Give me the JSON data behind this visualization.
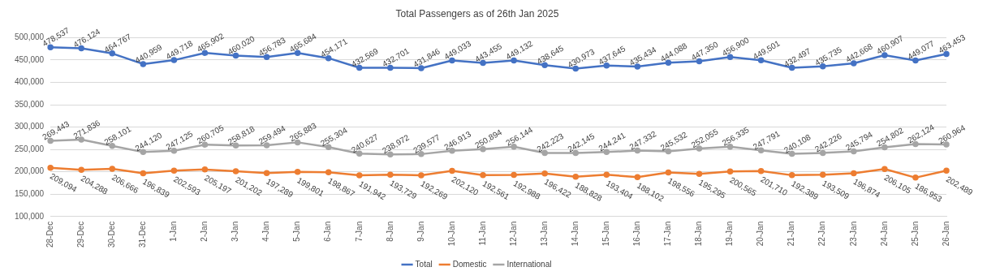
{
  "chart_data": {
    "type": "line",
    "title": "Total Passengers as of 26th Jan 2025",
    "categories": [
      "28-Dec",
      "29-Dec",
      "30-Dec",
      "31-Dec",
      "1-Jan",
      "2-Jan",
      "3-Jan",
      "4-Jan",
      "5-Jan",
      "6-Jan",
      "7-Jan",
      "8-Jan",
      "9-Jan",
      "10-Jan",
      "11-Jan",
      "12-Jan",
      "13-Jan",
      "14-Jan",
      "15-Jan",
      "16-Jan",
      "17-Jan",
      "18-Jan",
      "19-Jan",
      "20-Jan",
      "21-Jan",
      "22-Jan",
      "23-Jan",
      "24-Jan",
      "25-Jan",
      "26-Jan"
    ],
    "series": [
      {
        "name": "Total",
        "color": "#4472c4",
        "values": [
          478537,
          476124,
          464767,
          440959,
          449718,
          465902,
          460020,
          456783,
          465684,
          454171,
          432569,
          432701,
          431846,
          449033,
          443455,
          449132,
          438645,
          430973,
          437645,
          435434,
          444088,
          447350,
          456900,
          449501,
          432497,
          435735,
          442668,
          460907,
          449077,
          463453
        ],
        "value_labels": [
          "478,537",
          "476,124",
          "464,767",
          "440,959",
          "449,718",
          "465,902",
          "460,020",
          "456,783",
          "465,684",
          "454,171",
          "432,569",
          "432,701",
          "431,846",
          "449,033",
          "443,455",
          "449,132",
          "438,645",
          "430,973",
          "437,645",
          "435,434",
          "444,088",
          "447,350",
          "456,900",
          "449,501",
          "432,497",
          "435,735",
          "442,668",
          "460,907",
          "449,077",
          "463,453"
        ]
      },
      {
        "name": "Domestic",
        "color": "#ed7d31",
        "values": [
          209094,
          204288,
          206666,
          196839,
          202593,
          205197,
          201202,
          197289,
          199801,
          198867,
          191942,
          193729,
          192269,
          202120,
          192561,
          192988,
          196422,
          188828,
          193404,
          188102,
          198556,
          195295,
          200565,
          201710,
          192389,
          193509,
          196874,
          206105,
          186953,
          202489
        ],
        "value_labels": [
          "209,094",
          "204,288",
          "206,666",
          "196,839",
          "202,593",
          "205,197",
          "201,202",
          "197,289",
          "199,801",
          "198,867",
          "191,942",
          "193,729",
          "192,269",
          "202,120",
          "192,561",
          "192,988",
          "196,422",
          "188,828",
          "193,404",
          "188,102",
          "198,556",
          "195,295",
          "200,565",
          "201,710",
          "192,389",
          "193,509",
          "196,874",
          "206,105",
          "186,953",
          "202,489"
        ]
      },
      {
        "name": "International",
        "color": "#a5a5a5",
        "values": [
          269443,
          271836,
          258101,
          244120,
          247125,
          260705,
          258818,
          259494,
          265883,
          255304,
          240627,
          238972,
          239577,
          246913,
          250894,
          256144,
          242223,
          242145,
          244241,
          247332,
          245532,
          252055,
          256335,
          247791,
          240108,
          242226,
          245794,
          254802,
          262124,
          260964
        ],
        "value_labels": [
          "269,443",
          "271,836",
          "258,101",
          "244,120",
          "247,125",
          "260,705",
          "258,818",
          "259,494",
          "265,883",
          "255,304",
          "240,627",
          "238,972",
          "239,577",
          "246,913",
          "250,894",
          "256,144",
          "242,223",
          "242,145",
          "244,241",
          "247,332",
          "245,532",
          "252,055",
          "256,335",
          "247,791",
          "240,108",
          "242,226",
          "245,794",
          "254,802",
          "262,124",
          "260,964"
        ]
      }
    ],
    "ylim": [
      100000,
      500000
    ],
    "yticks": [
      {
        "value": 100000,
        "label": "100,000"
      },
      {
        "value": 150000,
        "label": "150,000"
      },
      {
        "value": 200000,
        "label": "200,000"
      },
      {
        "value": 250000,
        "label": "250,000"
      },
      {
        "value": 300000,
        "label": "300,000"
      },
      {
        "value": 350000,
        "label": "350,000"
      },
      {
        "value": 400000,
        "label": "400,000"
      },
      {
        "value": 450000,
        "label": "450,000"
      },
      {
        "value": 500000,
        "label": "500,000"
      }
    ],
    "grid": "y",
    "legend": "bottom",
    "marker": "circle",
    "line_style": "solid"
  }
}
